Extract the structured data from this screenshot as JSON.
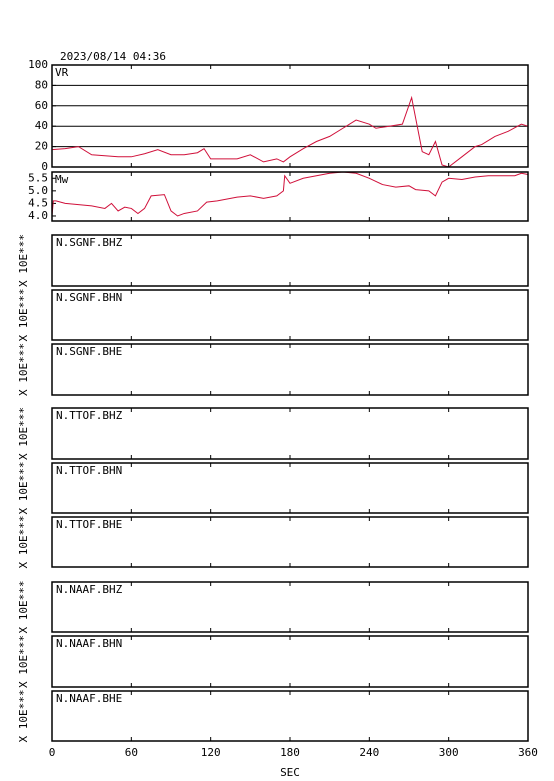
{
  "chart_data": [
    {
      "type": "line",
      "title": "2023/08/14 04:36",
      "x": [
        0,
        10,
        20,
        30,
        40,
        50,
        60,
        70,
        80,
        90,
        100,
        110,
        115,
        120,
        130,
        140,
        150,
        160,
        170,
        175,
        180,
        190,
        200,
        210,
        220,
        230,
        240,
        245,
        255,
        265,
        272,
        280,
        285,
        290,
        295,
        300,
        310,
        320,
        325,
        335,
        345,
        355,
        360
      ],
      "series": [
        {
          "name": "VR",
          "color": "#d0103a",
          "values": [
            17,
            18,
            20,
            12,
            11,
            10,
            10,
            13,
            17,
            12,
            12,
            14,
            18,
            8,
            8,
            8,
            12,
            5,
            8,
            5,
            10,
            18,
            25,
            30,
            38,
            46,
            42,
            38,
            40,
            42,
            68,
            15,
            12,
            25,
            2,
            0,
            10,
            20,
            22,
            30,
            35,
            42,
            40
          ]
        }
      ],
      "xlim": [
        0,
        360
      ],
      "ylim": [
        0,
        100
      ],
      "yticks": [
        0,
        20,
        40,
        60,
        80,
        100
      ],
      "grid": true
    },
    {
      "type": "line",
      "x": [
        0,
        1,
        3,
        10,
        20,
        30,
        40,
        45,
        50,
        55,
        60,
        65,
        70,
        75,
        85,
        90,
        95,
        100,
        110,
        117,
        125,
        140,
        150,
        160,
        170,
        175,
        176,
        180,
        190,
        200,
        210,
        220,
        230,
        240,
        250,
        260,
        270,
        275,
        285,
        290,
        295,
        300,
        310,
        320,
        330,
        350,
        355,
        360
      ],
      "series": [
        {
          "name": "Mw",
          "color": "#d0103a",
          "values": [
            4.0,
            4.6,
            4.6,
            4.5,
            4.45,
            4.4,
            4.3,
            4.5,
            4.2,
            4.35,
            4.3,
            4.1,
            4.3,
            4.8,
            4.85,
            4.2,
            4.0,
            4.1,
            4.2,
            4.55,
            4.6,
            4.75,
            4.8,
            4.7,
            4.8,
            5.0,
            5.6,
            5.3,
            5.5,
            5.6,
            5.7,
            5.75,
            5.7,
            5.5,
            5.25,
            5.15,
            5.2,
            5.05,
            5.0,
            4.8,
            5.35,
            5.5,
            5.45,
            5.55,
            5.6,
            5.6,
            5.7,
            5.65
          ]
        }
      ],
      "xlim": [
        0,
        360
      ],
      "ylim": [
        3.8,
        5.75
      ],
      "yticks": [
        {
          "value": 4.0,
          "label": "4.0"
        },
        4.5,
        {
          "value": 5.0,
          "label": "5.0"
        },
        5.5
      ],
      "grid": false
    }
  ],
  "time_axis": {
    "label": "SEC",
    "lim": [
      0,
      360
    ],
    "ticks": [
      0,
      60,
      120,
      180,
      240,
      300,
      360
    ]
  },
  "panels": [
    {
      "label": "N.SGNF.BHZ",
      "scale_label": "X 10E***"
    },
    {
      "label": "N.SGNF.BHN",
      "scale_label": "X 10E***"
    },
    {
      "label": "N.SGNF.BHE",
      "scale_label": "X 10E***"
    },
    {
      "label": "N.TTOF.BHZ",
      "scale_label": "X 10E***"
    },
    {
      "label": "N.TTOF.BHN",
      "scale_label": "X 10E***"
    },
    {
      "label": "N.TTOF.BHE",
      "scale_label": "X 10E***"
    },
    {
      "label": "N.NAAF.BHZ",
      "scale_label": "X 10E***"
    },
    {
      "label": "N.NAAF.BHN",
      "scale_label": "X 10E***"
    },
    {
      "label": "N.NAAF.BHE",
      "scale_label": "X 10E***"
    }
  ]
}
